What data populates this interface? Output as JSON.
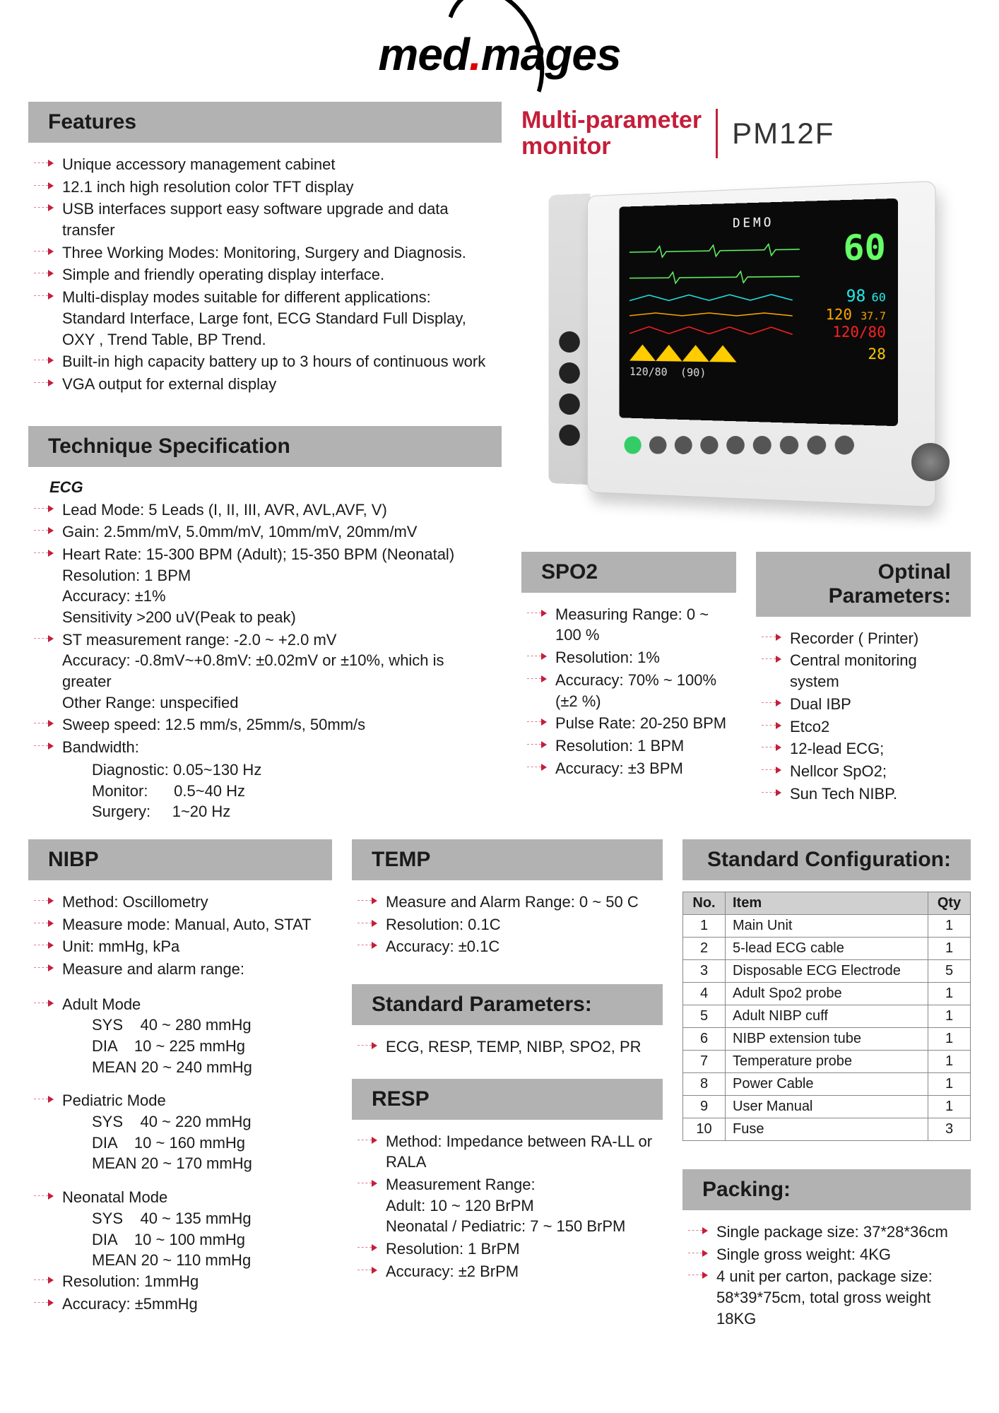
{
  "logo_text": "med mages",
  "header": {
    "title_line1": "Multi-parameter",
    "title_line2": "monitor",
    "model": "PM12F"
  },
  "features_title": "Features",
  "features": [
    "Unique accessory management cabinet",
    "12.1 inch high resolution color TFT display",
    "USB interfaces support easy software upgrade and data transfer",
    "Three Working Modes: Monitoring, Surgery and Diagnosis.",
    "Simple and friendly operating display interface.",
    "Multi-display modes suitable for different applications: Standard Interface, Large font, ECG Standard Full Display, OXY , Trend Table, BP Trend.",
    "Built-in high capacity battery up to 3 hours of continuous work",
    "VGA output for external display"
  ],
  "tech_title": "Technique Specification",
  "ecg_label": "ECG",
  "ecg": [
    "Lead Mode: 5 Leads (I, II, III, AVR, AVL,AVF, V)",
    "Gain: 2.5mm/mV, 5.0mm/mV, 10mm/mV, 20mm/mV",
    "Heart Rate: 15-300 BPM (Adult); 15-350 BPM (Neonatal)\nResolution: 1 BPM\nAccuracy: ±1%\nSensitivity >200 uV(Peak to peak)",
    "ST measurement range: -2.0 ~ +2.0 mV\nAccuracy: -0.8mV~+0.8mV: ±0.02mV or ±10%, which is greater\nOther Range: unspecified",
    "Sweep speed: 12.5 mm/s, 25mm/s, 50mm/s",
    "Bandwidth:"
  ],
  "bandwidth": [
    "Diagnostic: 0.05~130 Hz",
    "Monitor:      0.5~40 Hz",
    "Surgery:     1~20 Hz"
  ],
  "spo2_title": "SPO2",
  "spo2": [
    "Measuring Range: 0 ~ 100 %",
    "Resolution: 1%",
    "Accuracy: 70% ~ 100% (±2 %)",
    "Pulse Rate: 20-250 BPM",
    "Resolution: 1 BPM",
    "Accuracy: ±3 BPM"
  ],
  "optional_title": "Optinal Parameters:",
  "optional": [
    "Recorder ( Printer)",
    "Central monitoring system",
    "Dual IBP",
    "Etco2",
    "12-lead ECG;",
    "Nellcor SpO2;",
    "Sun Tech NIBP."
  ],
  "nibp_title": "NIBP",
  "nibp_top": [
    "Method: Oscillometry",
    "Measure mode: Manual, Auto, STAT",
    "Unit: mmHg, kPa",
    "Measure and alarm range:"
  ],
  "adult_label": "Adult Mode",
  "adult": [
    "SYS    40 ~ 280 mmHg",
    "DIA    10 ~ 225 mmHg",
    "MEAN 20 ~ 240 mmHg"
  ],
  "ped_label": "Pediatric Mode",
  "ped": [
    "SYS    40 ~ 220 mmHg",
    "DIA    10 ~ 160 mmHg",
    "MEAN 20 ~ 170 mmHg"
  ],
  "neo_label": "Neonatal Mode",
  "neo": [
    "SYS    40 ~ 135 mmHg",
    "DIA    10 ~ 100 mmHg",
    "MEAN 20 ~ 110 mmHg"
  ],
  "nibp_tail": [
    "Resolution: 1mmHg",
    "Accuracy: ±5mmHg"
  ],
  "temp_title": "TEMP",
  "temp": [
    "Measure and Alarm Range: 0 ~ 50 C",
    "Resolution: 0.1C",
    "Accuracy: ±0.1C"
  ],
  "stdparam_title": "Standard Parameters:",
  "stdparam": [
    "ECG, RESP, TEMP, NIBP, SPO2, PR"
  ],
  "resp_title": "RESP",
  "resp": [
    "Method: Impedance between RA-LL or RALA",
    "Measurement Range:\n   Adult: 10 ~ 120 BrPM\n   Neonatal / Pediatric: 7 ~ 150 BrPM",
    "Resolution: 1 BrPM",
    "Accuracy: ±2 BrPM"
  ],
  "config_title": "Standard Configuration:",
  "config_headers": {
    "no": "No.",
    "item": "Item",
    "qty": "Qty"
  },
  "config_rows": [
    {
      "no": "1",
      "item": "Main Unit",
      "qty": "1"
    },
    {
      "no": "2",
      "item": "5-lead ECG cable",
      "qty": "1"
    },
    {
      "no": "3",
      "item": "Disposable ECG Electrode",
      "qty": "5"
    },
    {
      "no": "4",
      "item": "Adult Spo2 probe",
      "qty": "1"
    },
    {
      "no": "5",
      "item": "Adult NIBP cuff",
      "qty": "1"
    },
    {
      "no": "6",
      "item": "NIBP extension tube",
      "qty": "1"
    },
    {
      "no": "7",
      "item": "Temperature probe",
      "qty": "1"
    },
    {
      "no": "8",
      "item": "Power Cable",
      "qty": "1"
    },
    {
      "no": "9",
      "item": "User Manual",
      "qty": "1"
    },
    {
      "no": "10",
      "item": "Fuse",
      "qty": "3"
    }
  ],
  "packing_title": "Packing:",
  "packing": [
    "Single package size: 37*28*36cm",
    "Single gross weight: 4KG",
    "4 unit per carton, package size:\n    58*39*75cm, total gross weight 18KG"
  ],
  "screen": {
    "demo": "DEMO",
    "hr": "60",
    "spo2": "98",
    "spo2b": "60",
    "nibp": "120/80",
    "temp": "37.7",
    "resp": "120",
    "pr": "28",
    "nibp2": "120/80",
    "n90": "(90)"
  },
  "colors": {
    "accent": "#c41e3a",
    "section_bg": "#b2b2b2",
    "hr": "#66ff66",
    "spo2": "#22eeee",
    "temp": "#ffaa00",
    "nibp": "#ff2222"
  }
}
